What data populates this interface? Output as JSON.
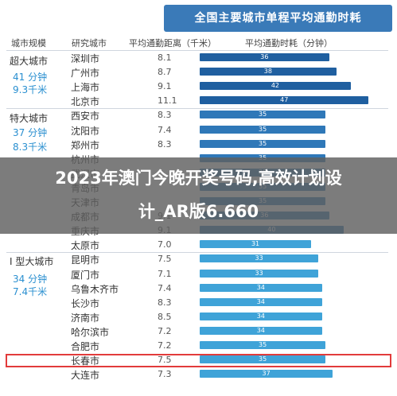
{
  "overlay": {
    "line1": "2023年澳门今晚开奖号码,高效计划设",
    "line2": "计_AR版6.660"
  },
  "chart_data": {
    "type": "bar",
    "title": "全国主要城市单程平均通勤时耗",
    "headers": {
      "group": "城市规模",
      "city": "研究城市",
      "distance": "平均通勤距离（千米）",
      "time": "平均通勤时耗（分钟）"
    },
    "xlim": [
      0,
      50
    ],
    "colors": {
      "super": "#1f5fa0",
      "tier1": "#2f78b8",
      "type1": "#3fa3d8",
      "highlight": "#e23b3b"
    },
    "groups": [
      {
        "name": "超大城市",
        "time": "41 分钟",
        "distance": "9.3千米"
      },
      {
        "name": "特大城市",
        "time": "37 分钟",
        "distance": "8.3千米"
      },
      {
        "name": "I 型大城市",
        "time": "34 分钟",
        "distance": "7.4千米"
      }
    ],
    "categories": [
      "深圳市",
      "广州市",
      "上海市",
      "北京市",
      "西安市",
      "沈阳市",
      "郑州市",
      "杭州市",
      "武汉市",
      "青岛市",
      "天津市",
      "成都市",
      "重庆市",
      "太原市",
      "昆明市",
      "厦门市",
      "乌鲁木齐市",
      "长沙市",
      "济南市",
      "哈尔滨市",
      "合肥市",
      "长春市",
      "大连市"
    ],
    "distances": [
      "8.1",
      "8.7",
      "9.1",
      "11.1",
      "8.3",
      "7.4",
      "8.3",
      "",
      "",
      "",
      "",
      "9.1",
      "9.1",
      "7.0",
      "7.5",
      "7.1",
      "7.4",
      "8.3",
      "8.5",
      "7.2",
      "7.2",
      "7.5",
      "7.3"
    ],
    "series": [
      {
        "values": [
          36,
          38,
          42,
          47,
          35,
          35,
          35,
          35,
          35,
          35,
          35,
          36,
          40,
          31,
          33,
          33,
          34,
          34,
          34,
          34,
          35,
          35,
          37
        ]
      }
    ]
  }
}
